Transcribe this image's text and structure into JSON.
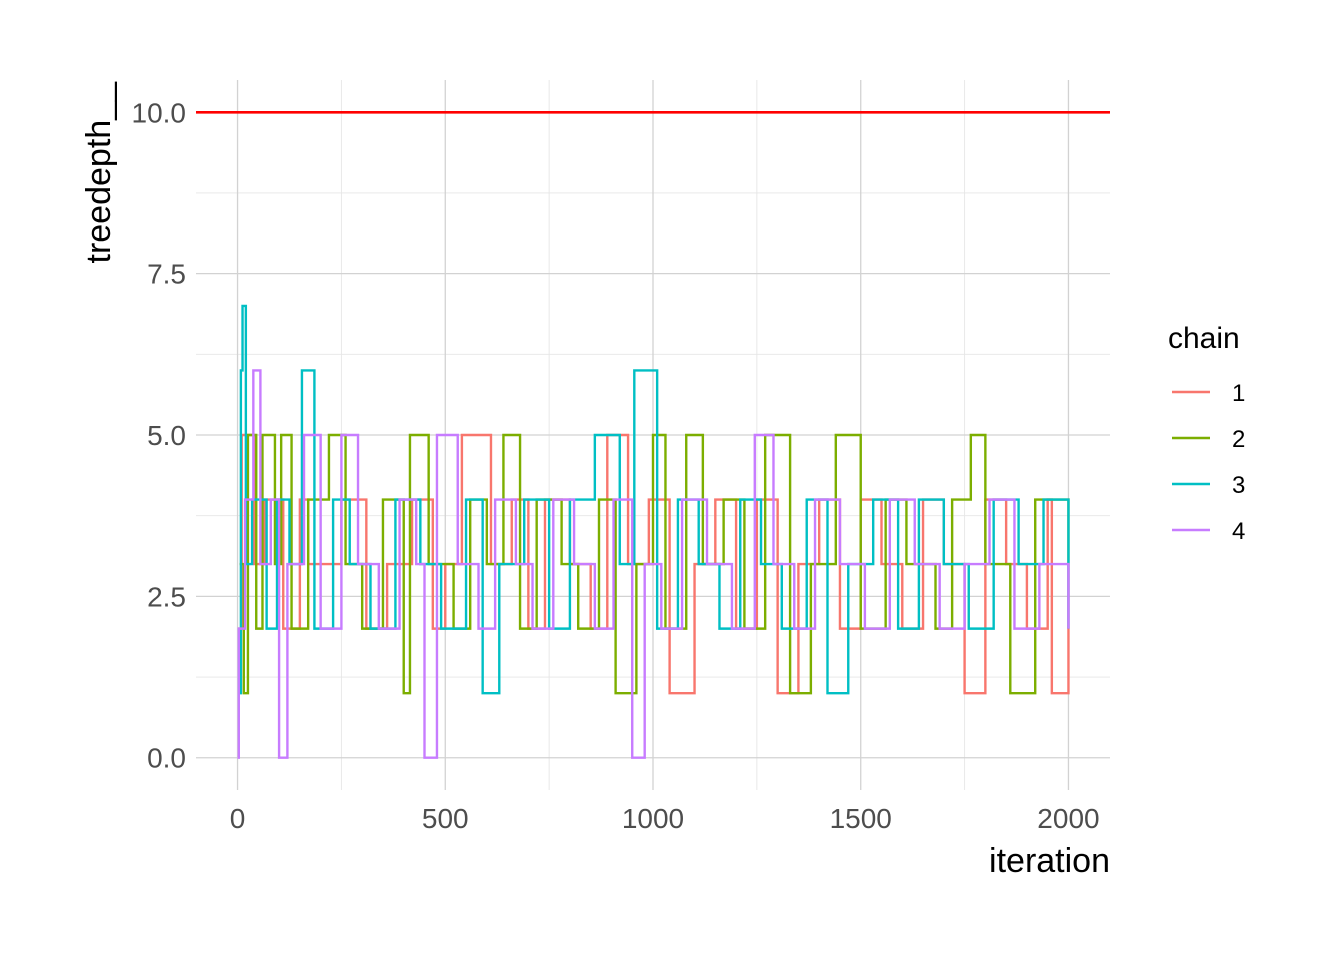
{
  "chart_data": {
    "type": "line",
    "title": "",
    "xlabel": "iteration",
    "ylabel": "treedepth__",
    "xlim": [
      -100,
      2100
    ],
    "ylim": [
      -0.5,
      10.5
    ],
    "x_ticks": [
      0,
      500,
      1000,
      1500,
      2000
    ],
    "x_tick_labels": [
      "0",
      "500",
      "1000",
      "1500",
      "2000"
    ],
    "y_ticks": [
      0,
      2.5,
      5,
      7.5,
      10
    ],
    "y_tick_labels": [
      "0.0",
      "2.5",
      "5.0",
      "7.5",
      "10.0"
    ],
    "grid": true,
    "reference_line": {
      "y": 10,
      "color": "#ff0000"
    },
    "legend": {
      "title": "chain",
      "position": "right"
    },
    "series": [
      {
        "name": "1",
        "color": "#f8766d",
        "x": [
          1,
          10,
          40,
          65,
          110,
          150,
          170,
          250,
          310,
          360,
          420,
          470,
          500,
          540,
          570,
          610,
          660,
          700,
          740,
          800,
          850,
          890,
          940,
          990,
          1040,
          1100,
          1150,
          1200,
          1250,
          1300,
          1350,
          1400,
          1450,
          1500,
          1550,
          1600,
          1650,
          1700,
          1750,
          1800,
          1850,
          1900,
          1950,
          1960,
          2000
        ],
        "values": [
          2,
          5,
          3,
          4,
          2,
          4,
          3,
          4,
          2,
          3,
          4,
          2,
          3,
          5,
          5,
          3,
          4,
          2,
          4,
          3,
          2,
          5,
          3,
          4,
          1,
          3,
          4,
          2,
          4,
          1,
          3,
          4,
          2,
          4,
          3,
          2,
          4,
          3,
          1,
          4,
          3,
          2,
          4,
          1,
          3
        ]
      },
      {
        "name": "2",
        "color": "#7cae00",
        "x": [
          5,
          15,
          25,
          45,
          60,
          90,
          105,
          130,
          170,
          220,
          260,
          300,
          350,
          400,
          415,
          460,
          520,
          560,
          600,
          640,
          680,
          720,
          780,
          820,
          870,
          910,
          960,
          1000,
          1030,
          1080,
          1120,
          1170,
          1220,
          1270,
          1330,
          1380,
          1440,
          1500,
          1560,
          1610,
          1680,
          1720,
          1765,
          1800,
          1860,
          1920,
          2000
        ],
        "values": [
          3,
          1,
          5,
          2,
          5,
          3,
          5,
          2,
          4,
          5,
          3,
          2,
          4,
          1,
          5,
          3,
          2,
          4,
          3,
          5,
          2,
          4,
          3,
          2,
          4,
          1,
          3,
          5,
          2,
          5,
          3,
          4,
          2,
          5,
          1,
          3,
          5,
          2,
          4,
          3,
          2,
          4,
          5,
          3,
          1,
          4,
          3
        ]
      },
      {
        "name": "3",
        "color": "#00bfc4",
        "x": [
          2,
          8,
          12,
          20,
          35,
          70,
          95,
          125,
          155,
          185,
          230,
          270,
          320,
          380,
          440,
          490,
          550,
          590,
          630,
          690,
          750,
          800,
          860,
          920,
          955,
          970,
          1010,
          1060,
          1110,
          1160,
          1210,
          1260,
          1310,
          1370,
          1420,
          1470,
          1530,
          1590,
          1640,
          1700,
          1760,
          1820,
          1880,
          1940,
          2000
        ],
        "values": [
          1,
          6,
          7,
          3,
          4,
          2,
          4,
          3,
          6,
          2,
          4,
          3,
          2,
          4,
          3,
          2,
          4,
          1,
          3,
          4,
          2,
          4,
          5,
          3,
          6,
          6,
          2,
          4,
          3,
          2,
          4,
          3,
          2,
          4,
          1,
          3,
          4,
          2,
          4,
          3,
          2,
          4,
          3,
          4,
          2
        ]
      },
      {
        "name": "4",
        "color": "#c77cff",
        "x": [
          0,
          3,
          18,
          38,
          55,
          80,
          100,
          120,
          160,
          200,
          250,
          290,
          340,
          390,
          430,
          450,
          480,
          530,
          580,
          620,
          670,
          710,
          760,
          810,
          860,
          905,
          950,
          980,
          1020,
          1070,
          1130,
          1190,
          1245,
          1290,
          1340,
          1390,
          1450,
          1510,
          1570,
          1630,
          1690,
          1750,
          1810,
          1870,
          1930,
          2000
        ],
        "values": [
          0,
          2,
          4,
          6,
          3,
          4,
          0,
          3,
          5,
          2,
          5,
          3,
          2,
          4,
          3,
          0,
          5,
          3,
          2,
          4,
          3,
          2,
          4,
          3,
          2,
          4,
          0,
          3,
          2,
          4,
          3,
          2,
          5,
          3,
          2,
          4,
          3,
          2,
          4,
          3,
          2,
          3,
          4,
          2,
          3,
          2
        ]
      }
    ]
  }
}
